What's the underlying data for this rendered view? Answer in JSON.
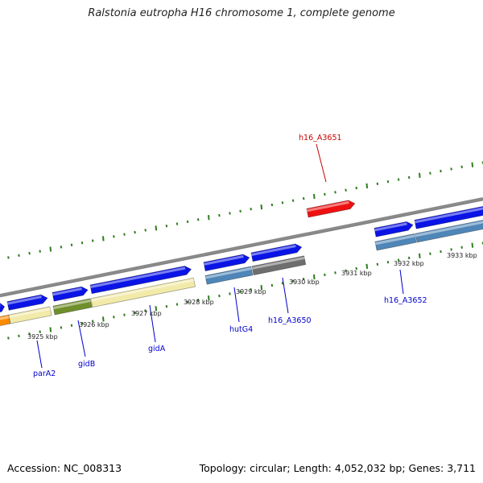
{
  "title": "Ralstonia eutropha H16 chromosome 1, complete genome",
  "footer": {
    "accession": "Accession: NC_008313",
    "topology": "Topology: circular; Length: 4,052,032 bp; Genes: 3,711"
  },
  "colors": {
    "backbone": "#8a8a8a",
    "tick": "#2e7d1e",
    "gene_blue": "#0a14e6",
    "gene_red": "#ee1111",
    "orf_yellow": "#f2eaa8",
    "orf_green": "#6f8f2a",
    "orf_steel": "#4f86b8",
    "orf_gray": "#6e6e6e",
    "orf_orange": "#ff8c00",
    "label_blue": "#0000cc",
    "label_red": "#cc0000"
  },
  "scale": {
    "labels": [
      "3925 kbp",
      "3926 kbp",
      "3927 kbp",
      "3928 kbp",
      "3929 kbp",
      "3930 kbp",
      "3931 kbp",
      "3932 kbp",
      "3933 kbp"
    ]
  },
  "gene_labels": [
    "parA2",
    "gidB",
    "gidA",
    "hutG4",
    "h16_A3650",
    "h16_A3651",
    "h16_A3652"
  ]
}
